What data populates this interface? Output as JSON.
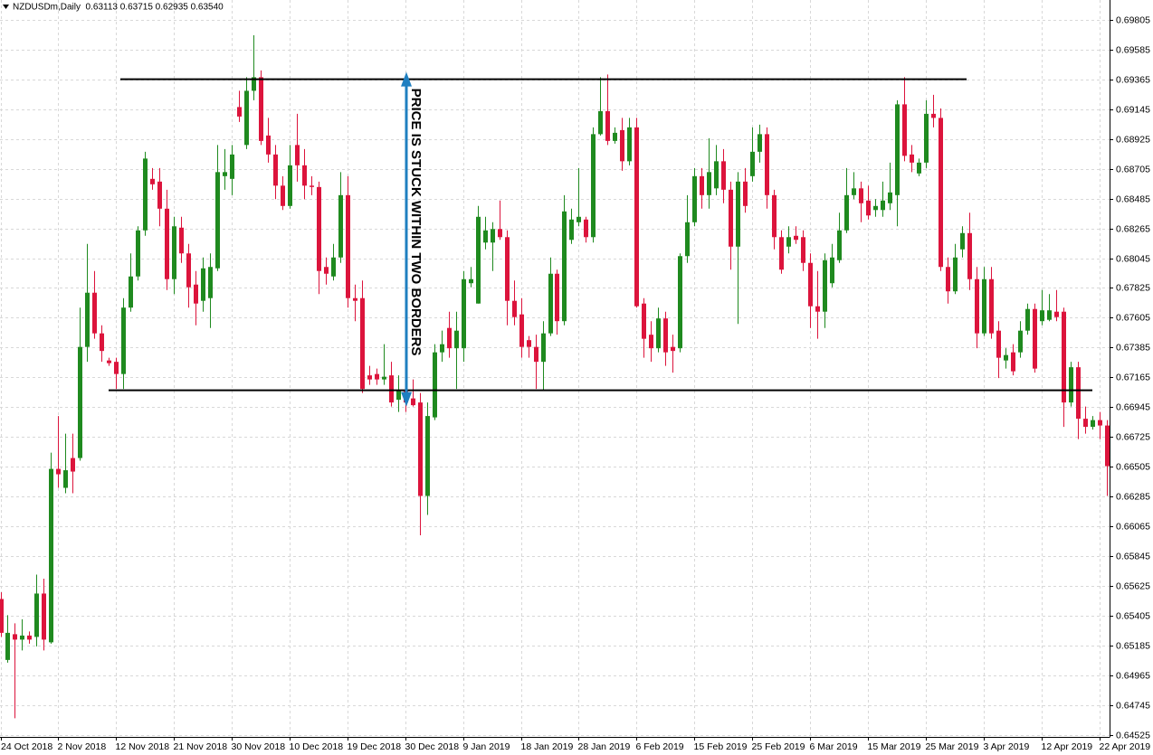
{
  "chart_data": {
    "type": "candlestick",
    "title": "NZDUSDm,Daily  0.63113 0.63715 0.62935 0.63540",
    "annotation": "PRICE IS STUCK WITHIN TWO BORDERS",
    "categories": [
      "24 Oct 2018",
      null,
      null,
      null,
      null,
      null,
      null,
      null,
      "2 Nov 2018",
      null,
      null,
      null,
      null,
      null,
      null,
      null,
      "12 Nov 2018",
      null,
      null,
      null,
      null,
      null,
      null,
      null,
      "21 Nov 2018",
      null,
      null,
      null,
      null,
      null,
      null,
      null,
      "30 Nov 2018",
      null,
      null,
      null,
      null,
      null,
      null,
      null,
      "10 Dec 2018",
      null,
      null,
      null,
      null,
      null,
      null,
      null,
      "19 Dec 2018",
      null,
      null,
      null,
      null,
      null,
      null,
      null,
      "30 Dec 2018",
      null,
      null,
      null,
      null,
      null,
      null,
      null,
      "9 Jan 2019",
      null,
      null,
      null,
      null,
      null,
      null,
      null,
      "18 Jan 2019",
      null,
      null,
      null,
      null,
      null,
      null,
      null,
      "28 Jan 2019",
      null,
      null,
      null,
      null,
      null,
      null,
      null,
      "6 Feb 2019",
      null,
      null,
      null,
      null,
      null,
      null,
      null,
      "15 Feb 2019",
      null,
      null,
      null,
      null,
      null,
      null,
      null,
      "25 Feb 2019",
      null,
      null,
      null,
      null,
      null,
      null,
      null,
      "6 Mar 2019",
      null,
      null,
      null,
      null,
      null,
      null,
      null,
      "15 Mar 2019",
      null,
      null,
      null,
      null,
      null,
      null,
      null,
      "25 Mar 2019",
      null,
      null,
      null,
      null,
      null,
      null,
      null,
      "3 Apr 2019",
      null,
      null,
      null,
      null,
      null,
      null,
      null,
      "12 Apr 2019",
      null,
      null,
      null,
      null,
      null,
      null,
      null,
      "22 Apr 2019",
      null
    ],
    "open": [
      0.6553,
      0.6508,
      0.6527,
      0.6523,
      0.6526,
      0.6525,
      0.6557,
      0.6521,
      0.6649,
      0.6635,
      0.6657,
      0.6657,
      0.6739,
      0.6779,
      0.6749,
      0.6729,
      0.6728,
      0.6719,
      0.6768,
      0.6791,
      0.6825,
      0.6863,
      0.6861,
      0.6841,
      0.6789,
      0.6827,
      0.6808,
      0.6785,
      0.6773,
      0.6775,
      0.6797,
      0.6865,
      0.6863,
      0.6916,
      0.6888,
      0.6928,
      0.6938,
      0.6895,
      0.6881,
      0.6858,
      0.6843,
      0.6888,
      0.6873,
      0.6858,
      0.6857,
      0.6798,
      0.6791,
      0.6805,
      0.6851,
      0.6775,
      0.6775,
      0.6718,
      0.6719,
      0.6715,
      0.6718,
      0.67,
      0.6707,
      0.6701,
      0.6698,
      0.6629,
      0.6687,
      0.6735,
      0.6753,
      0.6738,
      0.6738,
      0.6786,
      0.6771,
      0.6816,
      0.6816,
      0.6826,
      0.682,
      0.6773,
      0.6763,
      0.6744,
      0.6739,
      0.6728,
      0.6749,
      0.6793,
      0.6758,
      0.6818,
      0.6831,
      0.6833,
      0.682,
      0.6896,
      0.6913,
      0.6891,
      0.6899,
      0.6876,
      0.6901,
      0.6771,
      0.6748,
      0.6738,
      0.676,
      0.6739,
      0.6738,
      0.6806,
      0.6831,
      0.6865,
      0.6851,
      0.6856,
      0.6876,
      0.6855,
      0.6813,
      0.6861,
      0.6865,
      0.6883,
      0.6896,
      0.6851,
      0.682,
      0.6813,
      0.6821,
      0.682,
      0.6801,
      0.6769,
      0.6765,
      0.6786,
      0.6803,
      0.6825,
      0.6851,
      0.6856,
      0.6847,
      0.684,
      0.684,
      0.6845,
      0.6851,
      0.6918,
      0.6881,
      0.6867,
      0.6875,
      0.6911,
      0.6908,
      0.6798,
      0.678,
      0.6811,
      0.6823,
      0.6789,
      0.6749,
      0.6789,
      0.6751,
      0.6729,
      0.6735,
      0.6735,
      0.6751,
      0.6767,
      0.6758,
      0.6759,
      0.6765,
      0.6765,
      0.6698,
      0.6724,
      0.6686,
      0.668,
      0.6685,
      0.6681
    ],
    "high": [
      0.6558,
      0.6541,
      0.6535,
      0.6538,
      0.6529,
      0.6571,
      0.6568,
      0.6661,
      0.6688,
      0.6675,
      0.6675,
      0.6768,
      0.6815,
      0.6795,
      0.6755,
      0.6731,
      0.6731,
      0.6775,
      0.6808,
      0.6828,
      0.6883,
      0.6871,
      0.6871,
      0.6855,
      0.6835,
      0.6835,
      0.6815,
      0.6795,
      0.6805,
      0.6808,
      0.6888,
      0.6885,
      0.6888,
      0.6928,
      0.6938,
      0.6969,
      0.6943,
      0.6908,
      0.6888,
      0.6865,
      0.6888,
      0.6911,
      0.6885,
      0.6865,
      0.6861,
      0.6805,
      0.6815,
      0.6868,
      0.6865,
      0.6785,
      0.6788,
      0.6725,
      0.6723,
      0.6741,
      0.6728,
      0.6718,
      0.6715,
      0.6715,
      0.6705,
      0.6698,
      0.6741,
      0.6751,
      0.6765,
      0.6765,
      0.6795,
      0.6798,
      0.6843,
      0.6835,
      0.6831,
      0.6847,
      0.6825,
      0.6788,
      0.6775,
      0.6747,
      0.6748,
      0.6758,
      0.6805,
      0.6796,
      0.6851,
      0.6841,
      0.6871,
      0.6835,
      0.6901,
      0.6938,
      0.694,
      0.6901,
      0.6908,
      0.6908,
      0.6908,
      0.6775,
      0.6758,
      0.6768,
      0.6765,
      0.6748,
      0.6808,
      0.6851,
      0.6871,
      0.6871,
      0.6893,
      0.6888,
      0.6885,
      0.6861,
      0.6868,
      0.6871,
      0.6901,
      0.6903,
      0.6901,
      0.6855,
      0.6825,
      0.6828,
      0.6828,
      0.6825,
      0.6808,
      0.6795,
      0.6808,
      0.6815,
      0.6838,
      0.6871,
      0.6868,
      0.6861,
      0.6858,
      0.6848,
      0.6861,
      0.6875,
      0.6921,
      0.6938,
      0.6888,
      0.6878,
      0.6921,
      0.6925,
      0.6915,
      0.6805,
      0.6815,
      0.6828,
      0.6838,
      0.6798,
      0.6798,
      0.6798,
      0.6758,
      0.6738,
      0.6741,
      0.6758,
      0.6771,
      0.6771,
      0.6781,
      0.6778,
      0.6781,
      0.6768,
      0.6728,
      0.6728,
      0.6695,
      0.6688,
      0.6691,
      0.6685
    ],
    "low": [
      0.6525,
      0.6506,
      0.6465,
      0.6515,
      0.652,
      0.6518,
      0.6515,
      0.652,
      0.6635,
      0.6631,
      0.6631,
      0.6655,
      0.6728,
      0.6745,
      0.6728,
      0.6725,
      0.6708,
      0.6708,
      0.6765,
      0.6788,
      0.6821,
      0.6855,
      0.6828,
      0.6781,
      0.6778,
      0.6801,
      0.6768,
      0.6755,
      0.6765,
      0.6753,
      0.6795,
      0.6855,
      0.6851,
      0.6905,
      0.6885,
      0.6921,
      0.6888,
      0.6875,
      0.6848,
      0.684,
      0.6841,
      0.6861,
      0.6848,
      0.6851,
      0.6778,
      0.6785,
      0.6788,
      0.6801,
      0.6768,
      0.6758,
      0.6705,
      0.6711,
      0.6711,
      0.6711,
      0.6695,
      0.6691,
      0.6691,
      0.6695,
      0.66,
      0.6615,
      0.6685,
      0.6728,
      0.6731,
      0.6708,
      0.6728,
      0.6783,
      0.6771,
      0.6811,
      0.6795,
      0.6818,
      0.6755,
      0.6755,
      0.6731,
      0.6731,
      0.6708,
      0.6707,
      0.6747,
      0.6748,
      0.6755,
      0.6815,
      0.6828,
      0.6816,
      0.6816,
      0.6895,
      0.6888,
      0.6889,
      0.6869,
      0.6873,
      0.6768,
      0.6731,
      0.6728,
      0.6735,
      0.6725,
      0.672,
      0.6735,
      0.6801,
      0.6828,
      0.6841,
      0.6841,
      0.6851,
      0.6845,
      0.6796,
      0.6756,
      0.6838,
      0.6861,
      0.6875,
      0.6841,
      0.6811,
      0.6793,
      0.6808,
      0.6815,
      0.6795,
      0.6753,
      0.6745,
      0.6753,
      0.6783,
      0.6801,
      0.6823,
      0.6848,
      0.6831,
      0.6833,
      0.6835,
      0.6835,
      0.684,
      0.6828,
      0.6876,
      0.6868,
      0.6865,
      0.6871,
      0.6901,
      0.6795,
      0.6771,
      0.6778,
      0.6805,
      0.6781,
      0.6738,
      0.6747,
      0.6745,
      0.6716,
      0.6723,
      0.6718,
      0.6731,
      0.6748,
      0.672,
      0.6755,
      0.6758,
      0.6758,
      0.668,
      0.6695,
      0.6671,
      0.6675,
      0.6678,
      0.6671,
      0.6629
    ],
    "close": [
      0.6528,
      0.6528,
      0.6523,
      0.6526,
      0.6523,
      0.6557,
      0.6523,
      0.6649,
      0.6645,
      0.6648,
      0.6647,
      0.6739,
      0.6779,
      0.6749,
      0.6736,
      0.6727,
      0.6719,
      0.6768,
      0.6791,
      0.6825,
      0.6878,
      0.6859,
      0.6841,
      0.6789,
      0.6828,
      0.6808,
      0.6783,
      0.6771,
      0.6797,
      0.6798,
      0.6868,
      0.6868,
      0.6881,
      0.6909,
      0.6928,
      0.6938,
      0.6891,
      0.6881,
      0.6858,
      0.6843,
      0.6873,
      0.6873,
      0.6858,
      0.6857,
      0.6795,
      0.6793,
      0.6805,
      0.6851,
      0.6775,
      0.6773,
      0.6708,
      0.6715,
      0.6715,
      0.6717,
      0.6698,
      0.6707,
      0.6698,
      0.6696,
      0.6629,
      0.6688,
      0.6735,
      0.6741,
      0.6738,
      0.6751,
      0.6789,
      0.6789,
      0.6835,
      0.6825,
      0.6826,
      0.682,
      0.6773,
      0.6761,
      0.6739,
      0.6739,
      0.6728,
      0.6749,
      0.6793,
      0.6758,
      0.6839,
      0.6833,
      0.6835,
      0.682,
      0.6896,
      0.6913,
      0.6891,
      0.6897,
      0.6876,
      0.6901,
      0.6769,
      0.6745,
      0.6738,
      0.676,
      0.6735,
      0.6736,
      0.6806,
      0.6831,
      0.6865,
      0.6851,
      0.6868,
      0.6876,
      0.6855,
      0.6813,
      0.6861,
      0.6843,
      0.6883,
      0.6896,
      0.6851,
      0.682,
      0.6796,
      0.682,
      0.6818,
      0.6801,
      0.6769,
      0.6765,
      0.6803,
      0.6805,
      0.6825,
      0.6851,
      0.6856,
      0.6845,
      0.6836,
      0.6843,
      0.6847,
      0.6853,
      0.6918,
      0.688,
      0.6875,
      0.6875,
      0.6911,
      0.6908,
      0.6798,
      0.678,
      0.6805,
      0.6823,
      0.6789,
      0.6749,
      0.6789,
      0.6749,
      0.6731,
      0.6733,
      0.6721,
      0.6751,
      0.6767,
      0.6723,
      0.6766,
      0.6766,
      0.6761,
      0.6698,
      0.6724,
      0.6686,
      0.668,
      0.6685,
      0.6681,
      0.6651
    ],
    "up_color": "#1f8a1f",
    "down_color": "#dc143c",
    "levels": [
      0.69365,
      0.6707
    ],
    "ylim": [
      0.64512,
      0.6995
    ],
    "yticks": [
      0.69805,
      0.69585,
      0.69365,
      0.69145,
      0.68925,
      0.68705,
      0.68485,
      0.68265,
      0.68045,
      0.67825,
      0.67605,
      0.67385,
      0.67165,
      0.66945,
      0.66725,
      0.66505,
      0.66285,
      0.66065,
      0.65845,
      0.65625,
      0.65405,
      0.65185,
      0.64965,
      0.64745,
      0.64525
    ],
    "grid": true
  }
}
